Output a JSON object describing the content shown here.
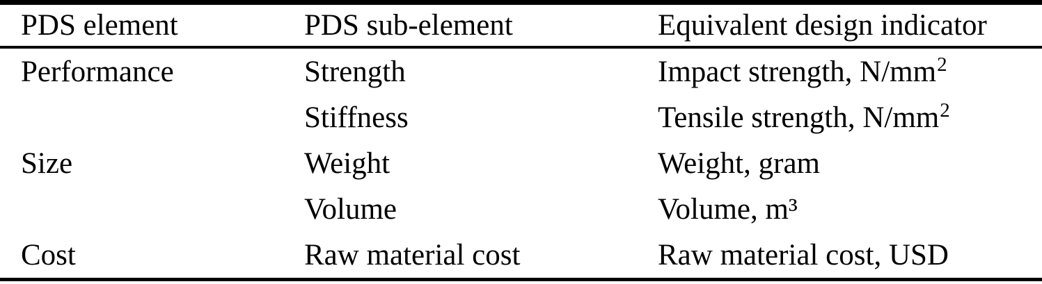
{
  "table": {
    "colors": {
      "text": "#000000",
      "rule": "#000000",
      "background": "#ffffff"
    },
    "columns": {
      "element": "PDS element",
      "sub_element": "PDS sub-element",
      "indicator": "Equivalent design indicator"
    },
    "rows": [
      {
        "element": "Performance",
        "sub_element": "Strength",
        "indicator": "Impact strength, N/mm",
        "indicator_sup": "2"
      },
      {
        "element": "",
        "sub_element": "Stiffness",
        "indicator": "Tensile strength, N/mm",
        "indicator_sup": "2"
      },
      {
        "element": "Size",
        "sub_element": "Weight",
        "indicator": "Weight, gram",
        "indicator_sup": ""
      },
      {
        "element": "",
        "sub_element": "Volume",
        "indicator": "Volume, m³",
        "indicator_sup": ""
      },
      {
        "element": "Cost",
        "sub_element": "Raw material cost",
        "indicator": "Raw material cost, USD",
        "indicator_sup": ""
      }
    ]
  }
}
